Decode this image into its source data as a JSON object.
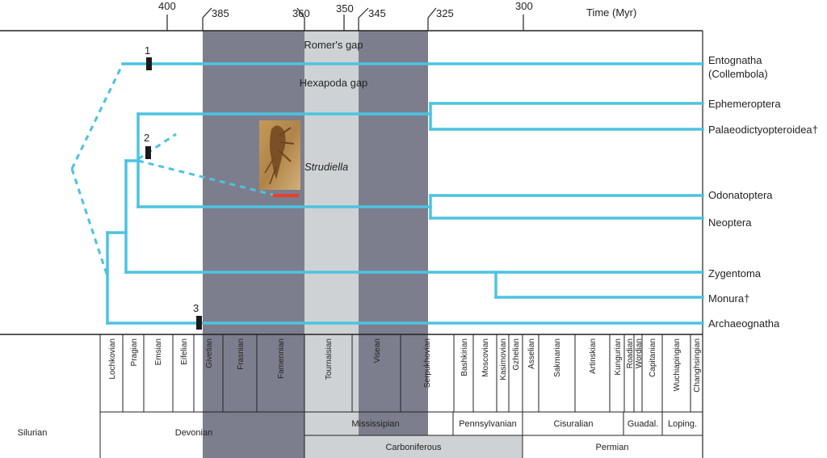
{
  "time_axis": {
    "unit_label": "Time (Myr)",
    "ticks": [
      "400",
      "385",
      "360",
      "350",
      "345",
      "325",
      "300"
    ]
  },
  "gaps": {
    "romer": "Romer's gap",
    "hexapoda": "Hexapoda gap"
  },
  "fossil": {
    "name": "Strudiella"
  },
  "node_markers": [
    "1",
    "2",
    "3"
  ],
  "taxa": [
    "Entognatha",
    "(Collembola)",
    "Ephemeroptera",
    "Palaeodictyopteroidea†",
    "Odonatoptera",
    "Neoptera",
    "Zygentoma",
    "Monura†",
    "Archaeognatha"
  ],
  "stages": [
    "Lochkovian",
    "Pragian",
    "Emsian",
    "Eifelian",
    "Givetian",
    "Frasnian",
    "Famennian",
    "Tournaisian",
    "Visean",
    "Serpukhovian",
    "Bashkirian",
    "Moscovian",
    "Kasimovian",
    "Gzhelian",
    "Asselian",
    "Sakmarian",
    "Artinskian",
    "Kungurian",
    "Roadian",
    "Wordian",
    "Capitanian",
    "Wuchiapingian",
    "Changhsingian"
  ],
  "periods": {
    "silurian": "Silurian",
    "devonian": "Devonian",
    "mississippian": "Mississipian",
    "pennsylvanian": "Pennsylvanian",
    "cisuralian": "Cisuralian",
    "guadalupian": "Guadal.",
    "lopingian": "Loping.",
    "carboniferous": "Carboniferous",
    "permian": "Permian"
  },
  "colors": {
    "lineage": "#4cc3e0",
    "dark_band": "#7d7e8d",
    "light_band": "#cfd2d4",
    "scale_bar": "#e8402a"
  }
}
